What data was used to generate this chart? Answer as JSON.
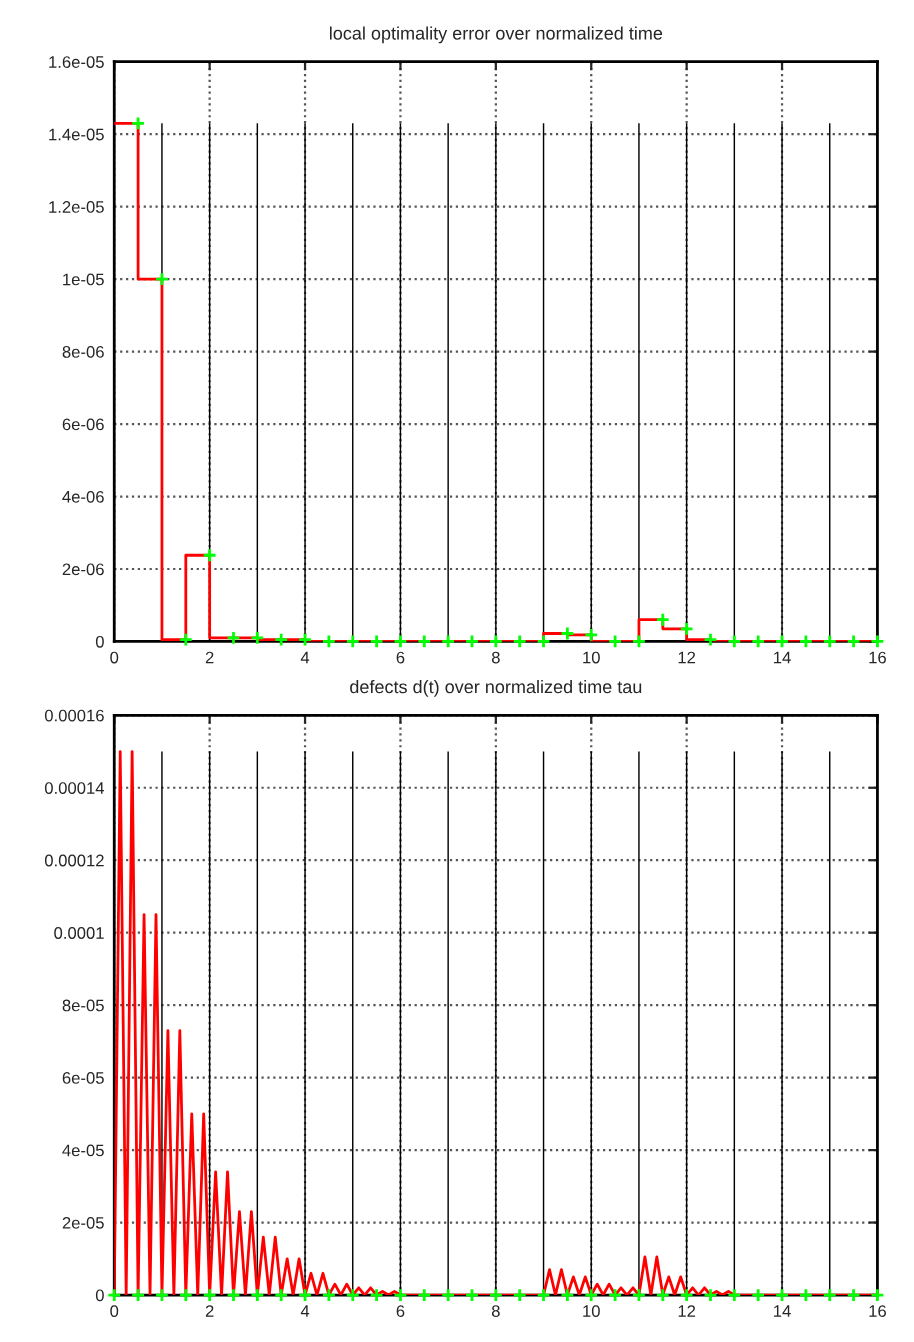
{
  "chart_data": [
    {
      "type": "step",
      "title": "local optimality error over normalized time",
      "xlim": [
        0,
        16
      ],
      "xticks": [
        0,
        2,
        4,
        6,
        8,
        10,
        12,
        14,
        16
      ],
      "ylim": [
        0,
        1.6e-05
      ],
      "yticks": [
        {
          "value": 0,
          "label": "0"
        },
        {
          "value": 2e-06,
          "label": "2e-06"
        },
        {
          "value": 4e-06,
          "label": "4e-06"
        },
        {
          "value": 6e-06,
          "label": "6e-06"
        },
        {
          "value": 8e-06,
          "label": "8e-06"
        },
        {
          "value": 1e-05,
          "label": "1e-05"
        },
        {
          "value": 1.2e-05,
          "label": "1.2e-05"
        },
        {
          "value": 1.4e-05,
          "label": "1.4e-05"
        },
        {
          "value": 1.6e-05,
          "label": "1.6e-05"
        }
      ],
      "grid": true,
      "series": [
        {
          "type": "bar",
          "color": "#000000",
          "x": [
            1,
            2,
            3,
            4,
            5,
            6,
            7,
            8,
            9,
            10,
            11,
            12,
            13,
            14,
            15
          ],
          "values": [
            1.43e-05,
            1.43e-05,
            1.43e-05,
            1.43e-05,
            1.43e-05,
            1.43e-05,
            1.43e-05,
            1.43e-05,
            1.43e-05,
            1.43e-05,
            1.43e-05,
            1.43e-05,
            1.43e-05,
            1.43e-05,
            1.43e-05
          ]
        },
        {
          "color": "#ff0000",
          "x": [
            0,
            0.5,
            1,
            1.5,
            2,
            2.5,
            3,
            3.5,
            4,
            4.5,
            5,
            5.5,
            6,
            6.5,
            7,
            7.5,
            8,
            8.5,
            9,
            9.5,
            10,
            10.5,
            11,
            11.5,
            12,
            12.5,
            13,
            13.5,
            14,
            14.5,
            15,
            15.5,
            16
          ],
          "values": [
            1.43e-05,
            1e-05,
            5e-08,
            2.38e-06,
            1e-07,
            1e-07,
            5e-08,
            5e-08,
            0,
            0,
            0,
            0,
            0,
            0,
            0,
            0,
            0,
            0,
            2.2e-07,
            1.8e-07,
            0,
            0,
            6e-07,
            3.5e-07,
            5e-08,
            0,
            0,
            0,
            0,
            0,
            0,
            0,
            0
          ]
        },
        {
          "type": "scatter",
          "color": "#00ff00",
          "marker": "cross",
          "x": [
            0.5,
            1,
            1.5,
            2,
            2.5,
            3,
            3.5,
            4,
            4.5,
            5,
            5.5,
            6,
            6.5,
            7,
            7.5,
            8,
            8.5,
            9,
            9.5,
            10,
            10.5,
            11,
            11.5,
            12,
            12.5,
            13,
            13.5,
            14,
            14.5,
            15,
            15.5,
            16
          ],
          "values": [
            1.43e-05,
            1e-05,
            5e-08,
            2.38e-06,
            1e-07,
            1e-07,
            5e-08,
            5e-08,
            0,
            0,
            0,
            0,
            0,
            0,
            0,
            0,
            0,
            0,
            2.2e-07,
            1.8e-07,
            0,
            0,
            6e-07,
            3.5e-07,
            5e-08,
            0,
            0,
            0,
            0,
            0,
            0,
            0
          ]
        }
      ]
    },
    {
      "type": "line",
      "title": "defects d(t) over normalized time tau",
      "xlim": [
        0,
        16
      ],
      "xticks": [
        0,
        2,
        4,
        6,
        8,
        10,
        12,
        14,
        16
      ],
      "ylim": [
        0,
        0.00016
      ],
      "yticks": [
        {
          "value": 0,
          "label": "0"
        },
        {
          "value": 2e-05,
          "label": "2e-05"
        },
        {
          "value": 4e-05,
          "label": "4e-05"
        },
        {
          "value": 6e-05,
          "label": "6e-05"
        },
        {
          "value": 8e-05,
          "label": "8e-05"
        },
        {
          "value": 0.0001,
          "label": "0.0001"
        },
        {
          "value": 0.00012,
          "label": "0.00012"
        },
        {
          "value": 0.00014,
          "label": "0.00014"
        },
        {
          "value": 0.00016,
          "label": "0.00016"
        }
      ],
      "grid": true,
      "series": [
        {
          "type": "bar",
          "color": "#000000",
          "x": [
            1,
            2,
            3,
            4,
            5,
            6,
            7,
            8,
            9,
            10,
            11,
            12,
            13,
            14,
            15
          ],
          "values": [
            0.00015,
            0.00015,
            0.00015,
            0.00015,
            0.00015,
            0.00015,
            0.00015,
            0.00015,
            0.00015,
            0.00015,
            0.00015,
            0.00015,
            0.00015,
            0.00015,
            0.00015
          ]
        },
        {
          "color": "#ff0000",
          "x": [
            0,
            0.125,
            0.25,
            0.375,
            0.5,
            0.625,
            0.75,
            0.875,
            1,
            1.125,
            1.25,
            1.375,
            1.5,
            1.625,
            1.75,
            1.875,
            2,
            2.125,
            2.25,
            2.375,
            2.5,
            2.625,
            2.75,
            2.875,
            3,
            3.125,
            3.25,
            3.375,
            3.5,
            3.625,
            3.75,
            3.875,
            4,
            4.125,
            4.25,
            4.375,
            4.5,
            4.625,
            4.75,
            4.875,
            5,
            5.125,
            5.25,
            5.375,
            5.5,
            5.625,
            5.75,
            5.875,
            6,
            9,
            9.125,
            9.25,
            9.375,
            9.5,
            9.625,
            9.75,
            9.875,
            10,
            10.125,
            10.25,
            10.375,
            10.5,
            10.625,
            10.75,
            10.875,
            11,
            11.125,
            11.25,
            11.375,
            11.5,
            11.625,
            11.75,
            11.875,
            12,
            12.125,
            12.25,
            12.375,
            12.5,
            12.625,
            12.75,
            12.875,
            13,
            16
          ],
          "values": [
            0,
            0.00015,
            0,
            0.00015,
            0,
            0.000105,
            0,
            0.000105,
            0,
            7.3e-05,
            0,
            7.3e-05,
            0,
            5e-05,
            0,
            5e-05,
            0,
            3.4e-05,
            0,
            3.4e-05,
            0,
            2.3e-05,
            0,
            2.3e-05,
            0,
            1.6e-05,
            0,
            1.6e-05,
            0,
            1e-05,
            0,
            1e-05,
            0,
            6e-06,
            0,
            6e-06,
            0,
            3e-06,
            0,
            3e-06,
            0,
            2e-06,
            0,
            2e-06,
            0,
            1e-06,
            0,
            1e-06,
            0,
            0,
            7e-06,
            0,
            7e-06,
            0,
            5e-06,
            0,
            5e-06,
            0,
            3e-06,
            0,
            3e-06,
            0,
            2e-06,
            0,
            2e-06,
            0,
            1.05e-05,
            0,
            1.05e-05,
            0,
            5e-06,
            0,
            5e-06,
            0,
            2e-06,
            0,
            2e-06,
            0,
            1e-06,
            0,
            1e-06,
            0,
            0
          ]
        },
        {
          "type": "scatter",
          "color": "#00ff00",
          "marker": "cross",
          "x": [
            0,
            0.5,
            1,
            1.5,
            2,
            2.5,
            3,
            3.5,
            4,
            4.5,
            5,
            5.5,
            6,
            6.5,
            7,
            7.5,
            8,
            8.5,
            9,
            9.5,
            10,
            10.5,
            11,
            11.5,
            12,
            12.5,
            13,
            13.5,
            14,
            14.5,
            15,
            15.5,
            16
          ],
          "values": [
            0,
            0,
            0,
            0,
            0,
            0,
            0,
            0,
            0,
            0,
            0,
            0,
            0,
            0,
            0,
            0,
            0,
            0,
            0,
            0,
            0,
            0,
            0,
            0,
            0,
            0,
            0,
            0,
            0,
            0,
            0,
            0,
            0
          ]
        }
      ]
    }
  ]
}
